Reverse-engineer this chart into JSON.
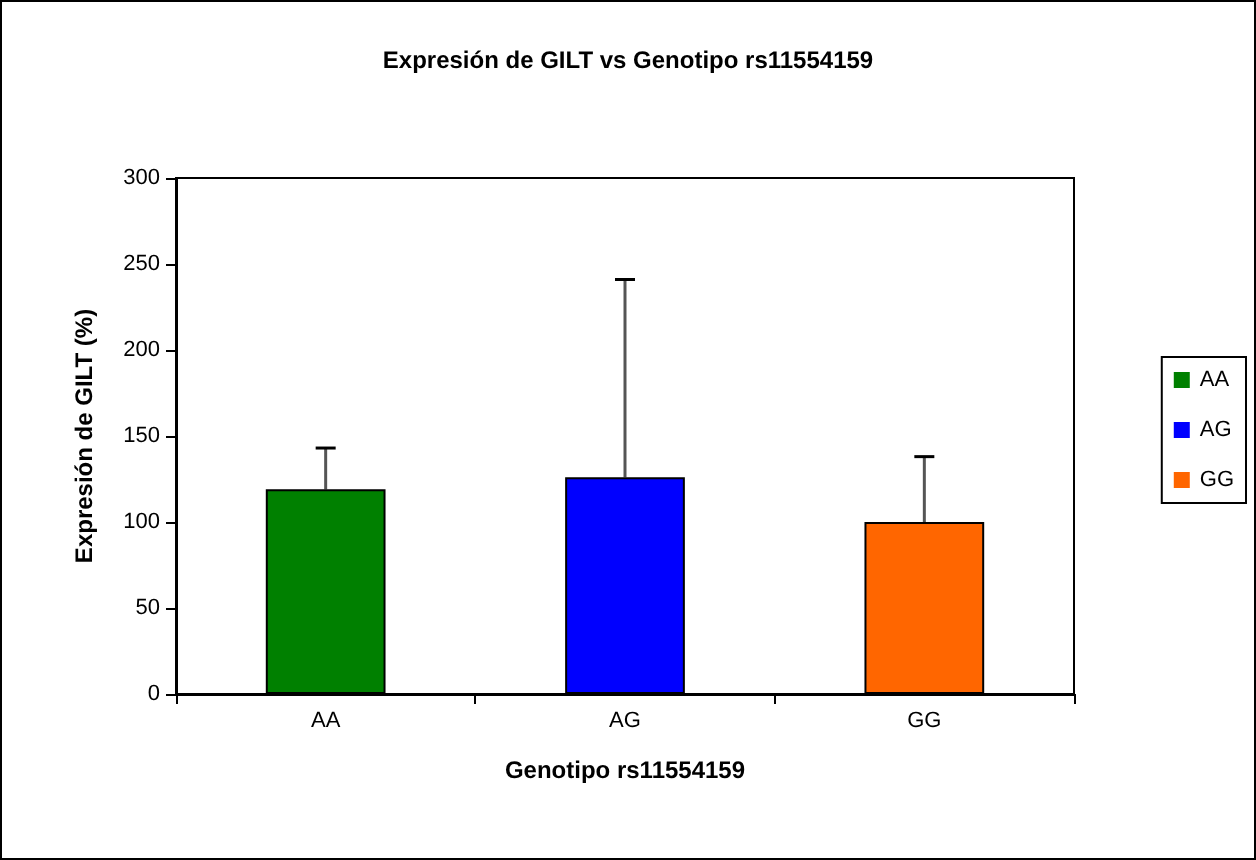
{
  "chart_data": {
    "type": "bar",
    "title": "Expresión de GILT vs Genotipo rs11554159",
    "xlabel": "Genotipo rs11554159",
    "ylabel": "Expresión de GILT (%)",
    "categories": [
      "AA",
      "AG",
      "GG"
    ],
    "series": [
      {
        "name": "AA",
        "color": "#008000",
        "values": [
          119,
          null,
          null
        ],
        "errors": [
          [
            119,
            143
          ],
          null,
          null
        ]
      },
      {
        "name": "AG",
        "color": "#0000ff",
        "values": [
          null,
          126,
          null
        ],
        "errors": [
          null,
          [
            126,
            241
          ],
          null
        ]
      },
      {
        "name": "GG",
        "color": "#ff6600",
        "values": [
          null,
          null,
          100
        ],
        "errors": [
          null,
          null,
          [
            100,
            138
          ]
        ]
      }
    ],
    "ylim": [
      0,
      300
    ],
    "yticks": [
      0,
      50,
      100,
      150,
      200,
      250,
      300
    ],
    "grid": false,
    "legend": "right"
  }
}
